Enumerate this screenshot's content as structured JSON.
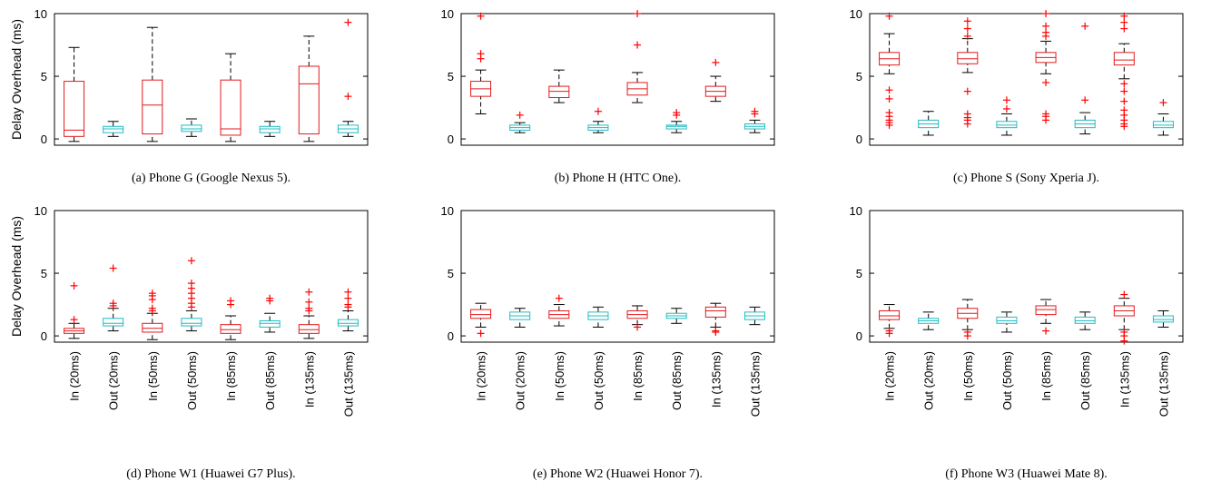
{
  "figure": {
    "ylabel": "Delay Overhead (ms)",
    "categories": [
      "In (20ms)",
      "Out (20ms)",
      "In (50ms)",
      "Out (50ms)",
      "In (85ms)",
      "Out (85ms)",
      "In (135ms)",
      "Out (135ms)"
    ],
    "yticks": [
      "0",
      "5",
      "10"
    ],
    "colors": {
      "in": "#e41a1c",
      "out": "#1ebcc4",
      "outlier": "#ff0000",
      "axis": "#000000"
    }
  },
  "chart_data": [
    {
      "type": "box",
      "caption": "(a) Phone G (Google Nexus 5).",
      "ylim": [
        -0.5,
        10
      ],
      "boxes": [
        {
          "min": -0.2,
          "q1": 0.2,
          "median": 0.7,
          "q3": 4.6,
          "max": 7.3,
          "outliers": []
        },
        {
          "min": 0.2,
          "q1": 0.5,
          "median": 0.8,
          "q3": 1.0,
          "max": 1.4,
          "outliers": []
        },
        {
          "min": -0.2,
          "q1": 0.4,
          "median": 2.7,
          "q3": 4.7,
          "max": 8.9,
          "outliers": []
        },
        {
          "min": 0.2,
          "q1": 0.6,
          "median": 0.8,
          "q3": 1.1,
          "max": 1.6,
          "outliers": []
        },
        {
          "min": -0.2,
          "q1": 0.3,
          "median": 0.8,
          "q3": 4.7,
          "max": 6.8,
          "outliers": []
        },
        {
          "min": 0.2,
          "q1": 0.5,
          "median": 0.8,
          "q3": 1.0,
          "max": 1.4,
          "outliers": []
        },
        {
          "min": -0.2,
          "q1": 0.4,
          "median": 4.4,
          "q3": 5.8,
          "max": 8.2,
          "outliers": []
        },
        {
          "min": 0.2,
          "q1": 0.5,
          "median": 0.8,
          "q3": 1.1,
          "max": 1.4,
          "outliers": [
            3.4,
            9.3
          ]
        }
      ]
    },
    {
      "type": "box",
      "caption": "(b) Phone H (HTC One).",
      "ylim": [
        -0.5,
        10
      ],
      "boxes": [
        {
          "min": 2.0,
          "q1": 3.4,
          "median": 4.0,
          "q3": 4.6,
          "max": 5.5,
          "outliers": [
            6.4,
            6.8,
            9.8
          ]
        },
        {
          "min": 0.5,
          "q1": 0.7,
          "median": 0.9,
          "q3": 1.1,
          "max": 1.3,
          "outliers": [
            1.9
          ]
        },
        {
          "min": 2.9,
          "q1": 3.3,
          "median": 3.8,
          "q3": 4.2,
          "max": 5.5,
          "outliers": []
        },
        {
          "min": 0.5,
          "q1": 0.7,
          "median": 0.9,
          "q3": 1.1,
          "max": 1.4,
          "outliers": [
            2.2
          ]
        },
        {
          "min": 2.9,
          "q1": 3.5,
          "median": 4.0,
          "q3": 4.5,
          "max": 5.3,
          "outliers": [
            7.5,
            10.0
          ]
        },
        {
          "min": 0.5,
          "q1": 0.8,
          "median": 1.0,
          "q3": 1.1,
          "max": 1.4,
          "outliers": [
            1.9,
            2.1
          ]
        },
        {
          "min": 3.0,
          "q1": 3.4,
          "median": 3.8,
          "q3": 4.2,
          "max": 5.0,
          "outliers": [
            6.1
          ]
        },
        {
          "min": 0.5,
          "q1": 0.8,
          "median": 1.0,
          "q3": 1.2,
          "max": 1.5,
          "outliers": [
            2.0,
            2.2
          ]
        }
      ]
    },
    {
      "type": "box",
      "caption": "(c) Phone S (Sony Xperia J).",
      "ylim": [
        -0.5,
        10
      ],
      "boxes": [
        {
          "min": 5.2,
          "q1": 5.9,
          "median": 6.4,
          "q3": 6.9,
          "max": 8.4,
          "outliers": [
            1.1,
            1.3,
            1.5,
            1.8,
            2.1,
            3.2,
            3.9,
            9.8
          ]
        },
        {
          "min": 0.3,
          "q1": 0.9,
          "median": 1.2,
          "q3": 1.5,
          "max": 2.2,
          "outliers": []
        },
        {
          "min": 5.3,
          "q1": 6.0,
          "median": 6.4,
          "q3": 6.9,
          "max": 8.0,
          "outliers": [
            1.2,
            1.5,
            1.7,
            2.0,
            3.8,
            8.2,
            8.8,
            9.4
          ]
        },
        {
          "min": 0.3,
          "q1": 0.9,
          "median": 1.1,
          "q3": 1.4,
          "max": 2.0,
          "outliers": [
            2.4,
            3.1
          ]
        },
        {
          "min": 5.2,
          "q1": 6.1,
          "median": 6.5,
          "q3": 6.9,
          "max": 7.8,
          "outliers": [
            1.5,
            1.8,
            2.0,
            4.5,
            8.2,
            8.5,
            9.0,
            10.0
          ]
        },
        {
          "min": 0.4,
          "q1": 0.9,
          "median": 1.2,
          "q3": 1.5,
          "max": 2.1,
          "outliers": [
            3.1,
            9.0
          ]
        },
        {
          "min": 4.8,
          "q1": 5.9,
          "median": 6.3,
          "q3": 6.9,
          "max": 7.6,
          "outliers": [
            1.0,
            1.2,
            1.5,
            1.9,
            2.3,
            3.0,
            3.8,
            4.4,
            8.8,
            9.3,
            9.8
          ]
        },
        {
          "min": 0.3,
          "q1": 0.9,
          "median": 1.1,
          "q3": 1.4,
          "max": 2.0,
          "outliers": [
            2.9
          ]
        }
      ]
    },
    {
      "type": "box",
      "caption": "(d) Phone W1 (Huawei G7 Plus).",
      "ylim": [
        -0.5,
        10
      ],
      "boxes": [
        {
          "min": -0.2,
          "q1": 0.2,
          "median": 0.4,
          "q3": 0.6,
          "max": 1.0,
          "outliers": [
            1.3,
            4.0
          ]
        },
        {
          "min": 0.4,
          "q1": 0.8,
          "median": 1.0,
          "q3": 1.4,
          "max": 2.2,
          "outliers": [
            2.4,
            2.6,
            5.4
          ]
        },
        {
          "min": -0.3,
          "q1": 0.3,
          "median": 0.6,
          "q3": 1.0,
          "max": 1.8,
          "outliers": [
            2.0,
            2.2,
            2.9,
            3.2,
            3.4
          ]
        },
        {
          "min": 0.4,
          "q1": 0.8,
          "median": 1.0,
          "q3": 1.4,
          "max": 2.0,
          "outliers": [
            2.3,
            2.6,
            3.0,
            3.4,
            3.8,
            4.2,
            6.0
          ]
        },
        {
          "min": -0.3,
          "q1": 0.2,
          "median": 0.5,
          "q3": 0.9,
          "max": 1.6,
          "outliers": [
            2.5,
            2.8
          ]
        },
        {
          "min": 0.3,
          "q1": 0.7,
          "median": 1.0,
          "q3": 1.2,
          "max": 1.8,
          "outliers": [
            2.8,
            3.0
          ]
        },
        {
          "min": -0.2,
          "q1": 0.2,
          "median": 0.5,
          "q3": 0.9,
          "max": 1.6,
          "outliers": [
            2.0,
            2.2,
            2.7,
            3.5
          ]
        },
        {
          "min": 0.4,
          "q1": 0.8,
          "median": 1.0,
          "q3": 1.3,
          "max": 2.0,
          "outliers": [
            2.3,
            2.5,
            3.0,
            3.5
          ]
        }
      ]
    },
    {
      "type": "box",
      "caption": "(e) Phone W2 (Huawei Honor 7).",
      "ylim": [
        -0.5,
        10
      ],
      "boxes": [
        {
          "min": 0.7,
          "q1": 1.4,
          "median": 1.7,
          "q3": 2.1,
          "max": 2.6,
          "outliers": [
            0.2
          ]
        },
        {
          "min": 0.7,
          "q1": 1.3,
          "median": 1.6,
          "q3": 1.9,
          "max": 2.2,
          "outliers": []
        },
        {
          "min": 0.8,
          "q1": 1.4,
          "median": 1.7,
          "q3": 2.0,
          "max": 2.5,
          "outliers": [
            3.0
          ]
        },
        {
          "min": 0.7,
          "q1": 1.3,
          "median": 1.6,
          "q3": 1.9,
          "max": 2.3,
          "outliers": []
        },
        {
          "min": 0.9,
          "q1": 1.4,
          "median": 1.7,
          "q3": 2.0,
          "max": 2.4,
          "outliers": [
            0.7
          ]
        },
        {
          "min": 1.0,
          "q1": 1.4,
          "median": 1.6,
          "q3": 1.8,
          "max": 2.2,
          "outliers": []
        },
        {
          "min": 0.7,
          "q1": 1.5,
          "median": 2.0,
          "q3": 2.3,
          "max": 2.6,
          "outliers": [
            0.3,
            0.4
          ]
        },
        {
          "min": 0.9,
          "q1": 1.3,
          "median": 1.6,
          "q3": 1.9,
          "max": 2.3,
          "outliers": []
        }
      ]
    },
    {
      "type": "box",
      "caption": "(f) Phone W3 (Huawei Mate 8).",
      "ylim": [
        -0.5,
        10
      ],
      "boxes": [
        {
          "min": 0.6,
          "q1": 1.3,
          "median": 1.6,
          "q3": 2.0,
          "max": 2.5,
          "outliers": [
            0.2,
            0.4
          ]
        },
        {
          "min": 0.5,
          "q1": 1.0,
          "median": 1.2,
          "q3": 1.4,
          "max": 1.9,
          "outliers": []
        },
        {
          "min": 0.5,
          "q1": 1.4,
          "median": 1.8,
          "q3": 2.2,
          "max": 2.9,
          "outliers": [
            0.0,
            0.3
          ]
        },
        {
          "min": 0.3,
          "q1": 1.0,
          "median": 1.2,
          "q3": 1.5,
          "max": 1.9,
          "outliers": []
        },
        {
          "min": 1.0,
          "q1": 1.7,
          "median": 2.1,
          "q3": 2.4,
          "max": 2.9,
          "outliers": [
            0.4
          ]
        },
        {
          "min": 0.5,
          "q1": 1.0,
          "median": 1.2,
          "q3": 1.5,
          "max": 1.9,
          "outliers": []
        },
        {
          "min": 0.5,
          "q1": 1.6,
          "median": 2.0,
          "q3": 2.4,
          "max": 3.0,
          "outliers": [
            -0.4,
            0.0,
            0.3,
            3.3
          ]
        },
        {
          "min": 0.7,
          "q1": 1.1,
          "median": 1.3,
          "q3": 1.6,
          "max": 2.0,
          "outliers": []
        }
      ]
    }
  ]
}
